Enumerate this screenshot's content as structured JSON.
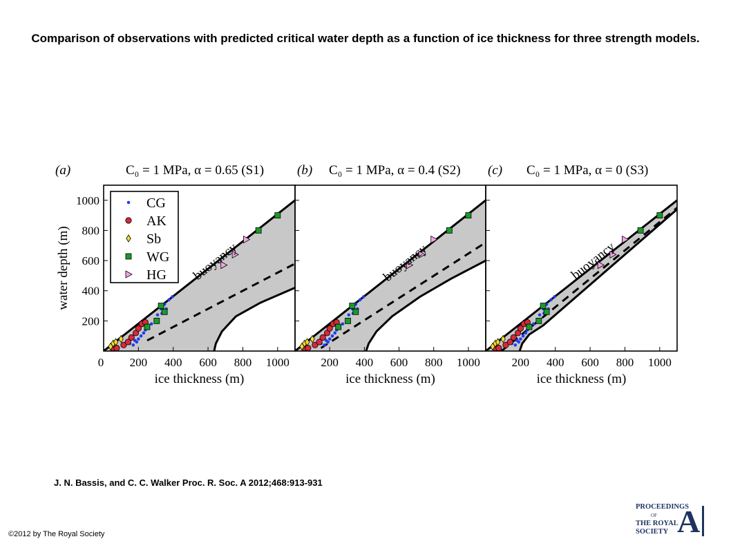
{
  "title": "Comparison of observations with predicted critical water depth as a function of ice thickness for three strength models.",
  "citation": "J. N. Bassis, and C. C. Walker Proc. R. Soc. A 2012;468:913-931",
  "copyright": "©2012 by The Royal Society",
  "logo": {
    "line1": "PROCEEDINGS",
    "line2": "OF",
    "line3": "THE ROYAL",
    "line4": "SOCIETY",
    "letter": "A"
  },
  "colors": {
    "fill": "#c8c8c8",
    "CG": "#1f3df0",
    "AK": "#d42a3a",
    "Sb": "#f2de2c",
    "WG": "#1a9a2a",
    "HG": "#f5a3e8"
  },
  "chart_data": [
    {
      "type": "line",
      "panel_label": "(a)",
      "title": "C₀ = 1 MPa, α = 0.65 (S1)",
      "xlabel": "ice thickness (m)",
      "ylabel": "water depth (m)",
      "xlim": [
        0,
        1100
      ],
      "ylim": [
        0,
        1100
      ],
      "xticks": [
        200,
        400,
        600,
        800,
        1000
      ],
      "yticks": [
        200,
        400,
        600,
        800,
        1000
      ],
      "origin_label": "0",
      "annotation": "buoyancy",
      "legend": {
        "placement": "top-left",
        "entries": [
          "CG",
          "AK",
          "Sb",
          "WG",
          "HG"
        ]
      },
      "curves": {
        "buoyancy": [
          [
            0,
            0
          ],
          [
            1100,
            1000
          ]
        ],
        "dashed": [
          [
            250,
            70
          ],
          [
            1100,
            580
          ]
        ],
        "lower": [
          [
            635,
            0
          ],
          [
            645,
            50
          ],
          [
            680,
            130
          ],
          [
            760,
            230
          ],
          [
            900,
            320
          ],
          [
            1100,
            420
          ]
        ]
      },
      "series": [
        {
          "name": "CG",
          "marker": "dot",
          "points": [
            [
              170,
              40
            ],
            [
              190,
              60
            ],
            [
              200,
              80
            ],
            [
              215,
              100
            ],
            [
              230,
              120
            ],
            [
              250,
              150
            ],
            [
              275,
              180
            ],
            [
              310,
              240
            ],
            [
              330,
              280
            ],
            [
              350,
              310
            ],
            [
              375,
              340
            ],
            [
              395,
              360
            ],
            [
              360,
              280
            ],
            [
              335,
              250
            ],
            [
              300,
              200
            ],
            [
              240,
              140
            ],
            [
              180,
              70
            ],
            [
              150,
              50
            ]
          ]
        },
        {
          "name": "AK",
          "marker": "circle",
          "points": [
            [
              55,
              20
            ],
            [
              75,
              20
            ],
            [
              115,
              40
            ],
            [
              140,
              60
            ],
            [
              160,
              90
            ],
            [
              185,
              120
            ],
            [
              200,
              150
            ],
            [
              220,
              180
            ],
            [
              240,
              190
            ]
          ]
        },
        {
          "name": "Sb",
          "marker": "diamond",
          "points": [
            [
              40,
              30
            ],
            [
              55,
              50
            ],
            [
              70,
              60
            ],
            [
              100,
              80
            ]
          ]
        },
        {
          "name": "WG",
          "marker": "square",
          "points": [
            [
              250,
              160
            ],
            [
              305,
              200
            ],
            [
              330,
              300
            ],
            [
              350,
              260
            ],
            [
              890,
              800
            ],
            [
              1000,
              900
            ]
          ]
        },
        {
          "name": "HG",
          "marker": "triangle",
          "points": [
            [
              690,
              570
            ],
            [
              755,
              640
            ],
            [
              820,
              740
            ]
          ]
        }
      ]
    },
    {
      "type": "line",
      "panel_label": "(b)",
      "title": "C₀ = 1 MPa, α = 0.4 (S2)",
      "xlabel": "ice thickness (m)",
      "ylabel": "",
      "xlim": [
        0,
        1100
      ],
      "ylim": [
        0,
        1100
      ],
      "xticks": [
        200,
        400,
        600,
        800,
        1000
      ],
      "yticks": [
        200,
        400,
        600,
        800,
        1000
      ],
      "annotation": "buoyancy",
      "curves": {
        "buoyancy": [
          [
            0,
            0
          ],
          [
            1100,
            1000
          ]
        ],
        "dashed": [
          [
            150,
            20
          ],
          [
            1100,
            720
          ]
        ],
        "lower": [
          [
            410,
            0
          ],
          [
            425,
            50
          ],
          [
            470,
            130
          ],
          [
            560,
            230
          ],
          [
            720,
            360
          ],
          [
            900,
            480
          ],
          [
            1100,
            600
          ]
        ]
      },
      "series": [
        {
          "name": "CG",
          "marker": "dot",
          "points": [
            [
              170,
              40
            ],
            [
              190,
              60
            ],
            [
              200,
              80
            ],
            [
              215,
              100
            ],
            [
              230,
              120
            ],
            [
              250,
              150
            ],
            [
              275,
              180
            ],
            [
              310,
              240
            ],
            [
              330,
              280
            ],
            [
              350,
              310
            ],
            [
              375,
              340
            ],
            [
              395,
              360
            ],
            [
              360,
              280
            ],
            [
              335,
              250
            ],
            [
              300,
              200
            ],
            [
              240,
              140
            ],
            [
              180,
              70
            ],
            [
              150,
              50
            ]
          ]
        },
        {
          "name": "AK",
          "marker": "circle",
          "points": [
            [
              55,
              20
            ],
            [
              75,
              20
            ],
            [
              115,
              40
            ],
            [
              140,
              60
            ],
            [
              160,
              90
            ],
            [
              185,
              120
            ],
            [
              200,
              150
            ],
            [
              220,
              180
            ],
            [
              240,
              190
            ]
          ]
        },
        {
          "name": "Sb",
          "marker": "diamond",
          "points": [
            [
              40,
              30
            ],
            [
              55,
              50
            ],
            [
              70,
              60
            ],
            [
              100,
              80
            ]
          ]
        },
        {
          "name": "WG",
          "marker": "square",
          "points": [
            [
              250,
              160
            ],
            [
              305,
              200
            ],
            [
              330,
              300
            ],
            [
              350,
              260
            ],
            [
              890,
              800
            ],
            [
              1000,
              900
            ]
          ]
        },
        {
          "name": "HG",
          "marker": "triangle",
          "points": [
            [
              660,
              570
            ],
            [
              730,
              640
            ],
            [
              800,
              740
            ]
          ]
        }
      ]
    },
    {
      "type": "line",
      "panel_label": "(c)",
      "title": "C₀ = 1 MPa, α = 0 (S3)",
      "xlabel": "ice thickness (m)",
      "ylabel": "",
      "xlim": [
        0,
        1100
      ],
      "ylim": [
        0,
        1100
      ],
      "xticks": [
        200,
        400,
        600,
        800,
        1000
      ],
      "yticks": [
        200,
        400,
        600,
        800,
        1000
      ],
      "annotation": "buoyancy",
      "curves": {
        "buoyancy": [
          [
            0,
            0
          ],
          [
            1100,
            1000
          ]
        ],
        "dashed": [
          [
            90,
            0
          ],
          [
            1100,
            950
          ]
        ],
        "lower": [
          [
            195,
            0
          ],
          [
            210,
            50
          ],
          [
            250,
            110
          ],
          [
            330,
            170
          ],
          [
            1100,
            940
          ]
        ]
      },
      "series": [
        {
          "name": "CG",
          "marker": "dot",
          "points": [
            [
              170,
              40
            ],
            [
              190,
              60
            ],
            [
              200,
              80
            ],
            [
              215,
              100
            ],
            [
              230,
              120
            ],
            [
              250,
              150
            ],
            [
              275,
              180
            ],
            [
              310,
              240
            ],
            [
              330,
              280
            ],
            [
              350,
              310
            ],
            [
              375,
              340
            ],
            [
              395,
              360
            ],
            [
              360,
              280
            ],
            [
              335,
              250
            ],
            [
              300,
              200
            ],
            [
              240,
              140
            ],
            [
              180,
              70
            ],
            [
              150,
              50
            ]
          ]
        },
        {
          "name": "AK",
          "marker": "circle",
          "points": [
            [
              55,
              20
            ],
            [
              75,
              20
            ],
            [
              115,
              40
            ],
            [
              140,
              60
            ],
            [
              160,
              90
            ],
            [
              185,
              120
            ],
            [
              200,
              150
            ],
            [
              220,
              180
            ],
            [
              240,
              190
            ]
          ]
        },
        {
          "name": "Sb",
          "marker": "diamond",
          "points": [
            [
              40,
              30
            ],
            [
              55,
              50
            ],
            [
              70,
              60
            ],
            [
              100,
              80
            ]
          ]
        },
        {
          "name": "WG",
          "marker": "square",
          "points": [
            [
              250,
              160
            ],
            [
              305,
              200
            ],
            [
              330,
              300
            ],
            [
              350,
              260
            ],
            [
              890,
              800
            ],
            [
              1000,
              900
            ]
          ]
        },
        {
          "name": "HG",
          "marker": "triangle",
          "points": [
            [
              660,
              570
            ],
            [
              730,
              640
            ],
            [
              800,
              740
            ]
          ]
        }
      ]
    }
  ]
}
